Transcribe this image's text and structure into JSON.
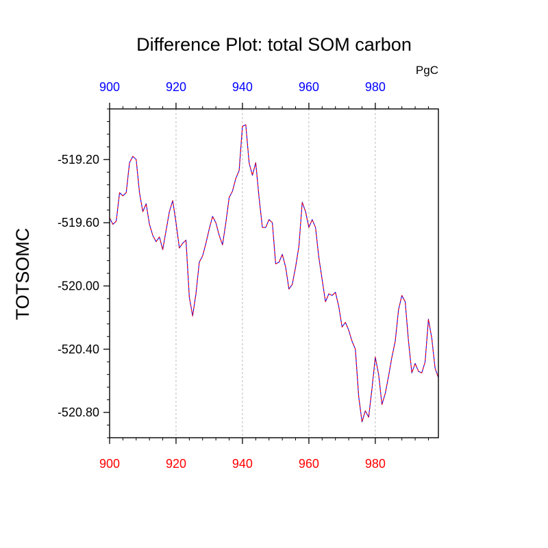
{
  "chart_data": {
    "type": "line",
    "title": "Difference Plot: total SOM carbon",
    "units": "PgC",
    "ylabel": "TOTSOMC",
    "xlabel": "",
    "xlim": [
      900,
      999
    ],
    "ylim": [
      -520.96,
      -518.88
    ],
    "x_ticks": [
      900,
      920,
      940,
      960,
      980
    ],
    "x_tick_labels_bottom": [
      "900",
      "920",
      "940",
      "960",
      "980"
    ],
    "x_tick_labels_top": [
      "900",
      "920",
      "940",
      "960",
      "980"
    ],
    "y_ticks": [
      -519.2,
      -519.6,
      -520.0,
      -520.4,
      -520.8
    ],
    "y_tick_labels": [
      "-519.20",
      "-519.60",
      "-520.00",
      "-520.40",
      "-520.80"
    ],
    "grid": "vertical dashed at x ticks",
    "colors": {
      "bottom_axis_labels": "#ff0000",
      "top_axis_labels": "#0000ff",
      "series_a": "#0000ff",
      "series_b": "#ff0000",
      "grid": "#bbbbbb",
      "axis": "#000000"
    },
    "series": [
      {
        "color": "#0000ff",
        "dash": "solid",
        "x": [
          900,
          901,
          902,
          903,
          904,
          905,
          906,
          907,
          908,
          909,
          910,
          911,
          912,
          913,
          914,
          915,
          916,
          917,
          918,
          919,
          920,
          921,
          922,
          923,
          924,
          925,
          926,
          927,
          928,
          929,
          930,
          931,
          932,
          933,
          934,
          935,
          936,
          937,
          938,
          939,
          940,
          941,
          942,
          943,
          944,
          945,
          946,
          947,
          948,
          949,
          950,
          951,
          952,
          953,
          954,
          955,
          956,
          957,
          958,
          959,
          960,
          961,
          962,
          963,
          964,
          965,
          966,
          967,
          968,
          969,
          970,
          971,
          972,
          973,
          974,
          975,
          976,
          977,
          978,
          979,
          980,
          981,
          982,
          983,
          984,
          985,
          986,
          987,
          988,
          989,
          990,
          991,
          992,
          993,
          994,
          995,
          996,
          997,
          998,
          999
        ],
        "y": [
          -519.57,
          -519.61,
          -519.59,
          -519.41,
          -519.43,
          -519.41,
          -519.22,
          -519.18,
          -519.2,
          -519.41,
          -519.53,
          -519.48,
          -519.61,
          -519.68,
          -519.72,
          -519.69,
          -519.77,
          -519.65,
          -519.53,
          -519.46,
          -519.6,
          -519.76,
          -519.73,
          -519.71,
          -520.07,
          -520.19,
          -520.05,
          -519.85,
          -519.81,
          -519.73,
          -519.64,
          -519.56,
          -519.6,
          -519.68,
          -519.74,
          -519.6,
          -519.44,
          -519.4,
          -519.32,
          -519.27,
          -518.99,
          -518.98,
          -519.22,
          -519.3,
          -519.22,
          -519.44,
          -519.63,
          -519.63,
          -519.58,
          -519.6,
          -519.86,
          -519.85,
          -519.8,
          -519.88,
          -520.02,
          -519.99,
          -519.88,
          -519.75,
          -519.47,
          -519.53,
          -519.63,
          -519.58,
          -519.63,
          -519.82,
          -519.96,
          -520.1,
          -520.05,
          -520.06,
          -520.04,
          -520.13,
          -520.26,
          -520.23,
          -520.28,
          -520.35,
          -520.4,
          -520.7,
          -520.86,
          -520.79,
          -520.83,
          -520.65,
          -520.45,
          -520.56,
          -520.75,
          -520.68,
          -520.57,
          -520.45,
          -520.35,
          -520.15,
          -520.06,
          -520.1,
          -520.35,
          -520.55,
          -520.49,
          -520.54,
          -520.55,
          -520.48,
          -520.21,
          -520.33,
          -520.52,
          -520.58
        ]
      },
      {
        "color": "#ff0000",
        "dash": "dashed",
        "x": [
          900,
          901,
          902,
          903,
          904,
          905,
          906,
          907,
          908,
          909,
          910,
          911,
          912,
          913,
          914,
          915,
          916,
          917,
          918,
          919,
          920,
          921,
          922,
          923,
          924,
          925,
          926,
          927,
          928,
          929,
          930,
          931,
          932,
          933,
          934,
          935,
          936,
          937,
          938,
          939,
          940,
          941,
          942,
          943,
          944,
          945,
          946,
          947,
          948,
          949,
          950,
          951,
          952,
          953,
          954,
          955,
          956,
          957,
          958,
          959,
          960,
          961,
          962,
          963,
          964,
          965,
          966,
          967,
          968,
          969,
          970,
          971,
          972,
          973,
          974,
          975,
          976,
          977,
          978,
          979,
          980,
          981,
          982,
          983,
          984,
          985,
          986,
          987,
          988,
          989,
          990,
          991,
          992,
          993,
          994,
          995,
          996,
          997,
          998,
          999
        ],
        "y": [
          -519.57,
          -519.61,
          -519.59,
          -519.41,
          -519.43,
          -519.41,
          -519.22,
          -519.18,
          -519.2,
          -519.41,
          -519.53,
          -519.48,
          -519.61,
          -519.68,
          -519.72,
          -519.69,
          -519.77,
          -519.65,
          -519.53,
          -519.46,
          -519.6,
          -519.76,
          -519.73,
          -519.71,
          -520.07,
          -520.19,
          -520.05,
          -519.85,
          -519.81,
          -519.73,
          -519.64,
          -519.56,
          -519.6,
          -519.68,
          -519.74,
          -519.6,
          -519.44,
          -519.4,
          -519.32,
          -519.27,
          -518.99,
          -518.98,
          -519.22,
          -519.3,
          -519.22,
          -519.44,
          -519.63,
          -519.63,
          -519.58,
          -519.6,
          -519.86,
          -519.85,
          -519.8,
          -519.88,
          -520.02,
          -519.99,
          -519.88,
          -519.75,
          -519.47,
          -519.53,
          -519.63,
          -519.58,
          -519.63,
          -519.82,
          -519.96,
          -520.1,
          -520.05,
          -520.06,
          -520.04,
          -520.13,
          -520.26,
          -520.23,
          -520.28,
          -520.35,
          -520.4,
          -520.7,
          -520.86,
          -520.79,
          -520.83,
          -520.65,
          -520.45,
          -520.56,
          -520.75,
          -520.68,
          -520.57,
          -520.45,
          -520.35,
          -520.15,
          -520.06,
          -520.1,
          -520.35,
          -520.55,
          -520.49,
          -520.54,
          -520.55,
          -520.48,
          -520.21,
          -520.33,
          -520.52,
          -520.58
        ]
      }
    ]
  }
}
